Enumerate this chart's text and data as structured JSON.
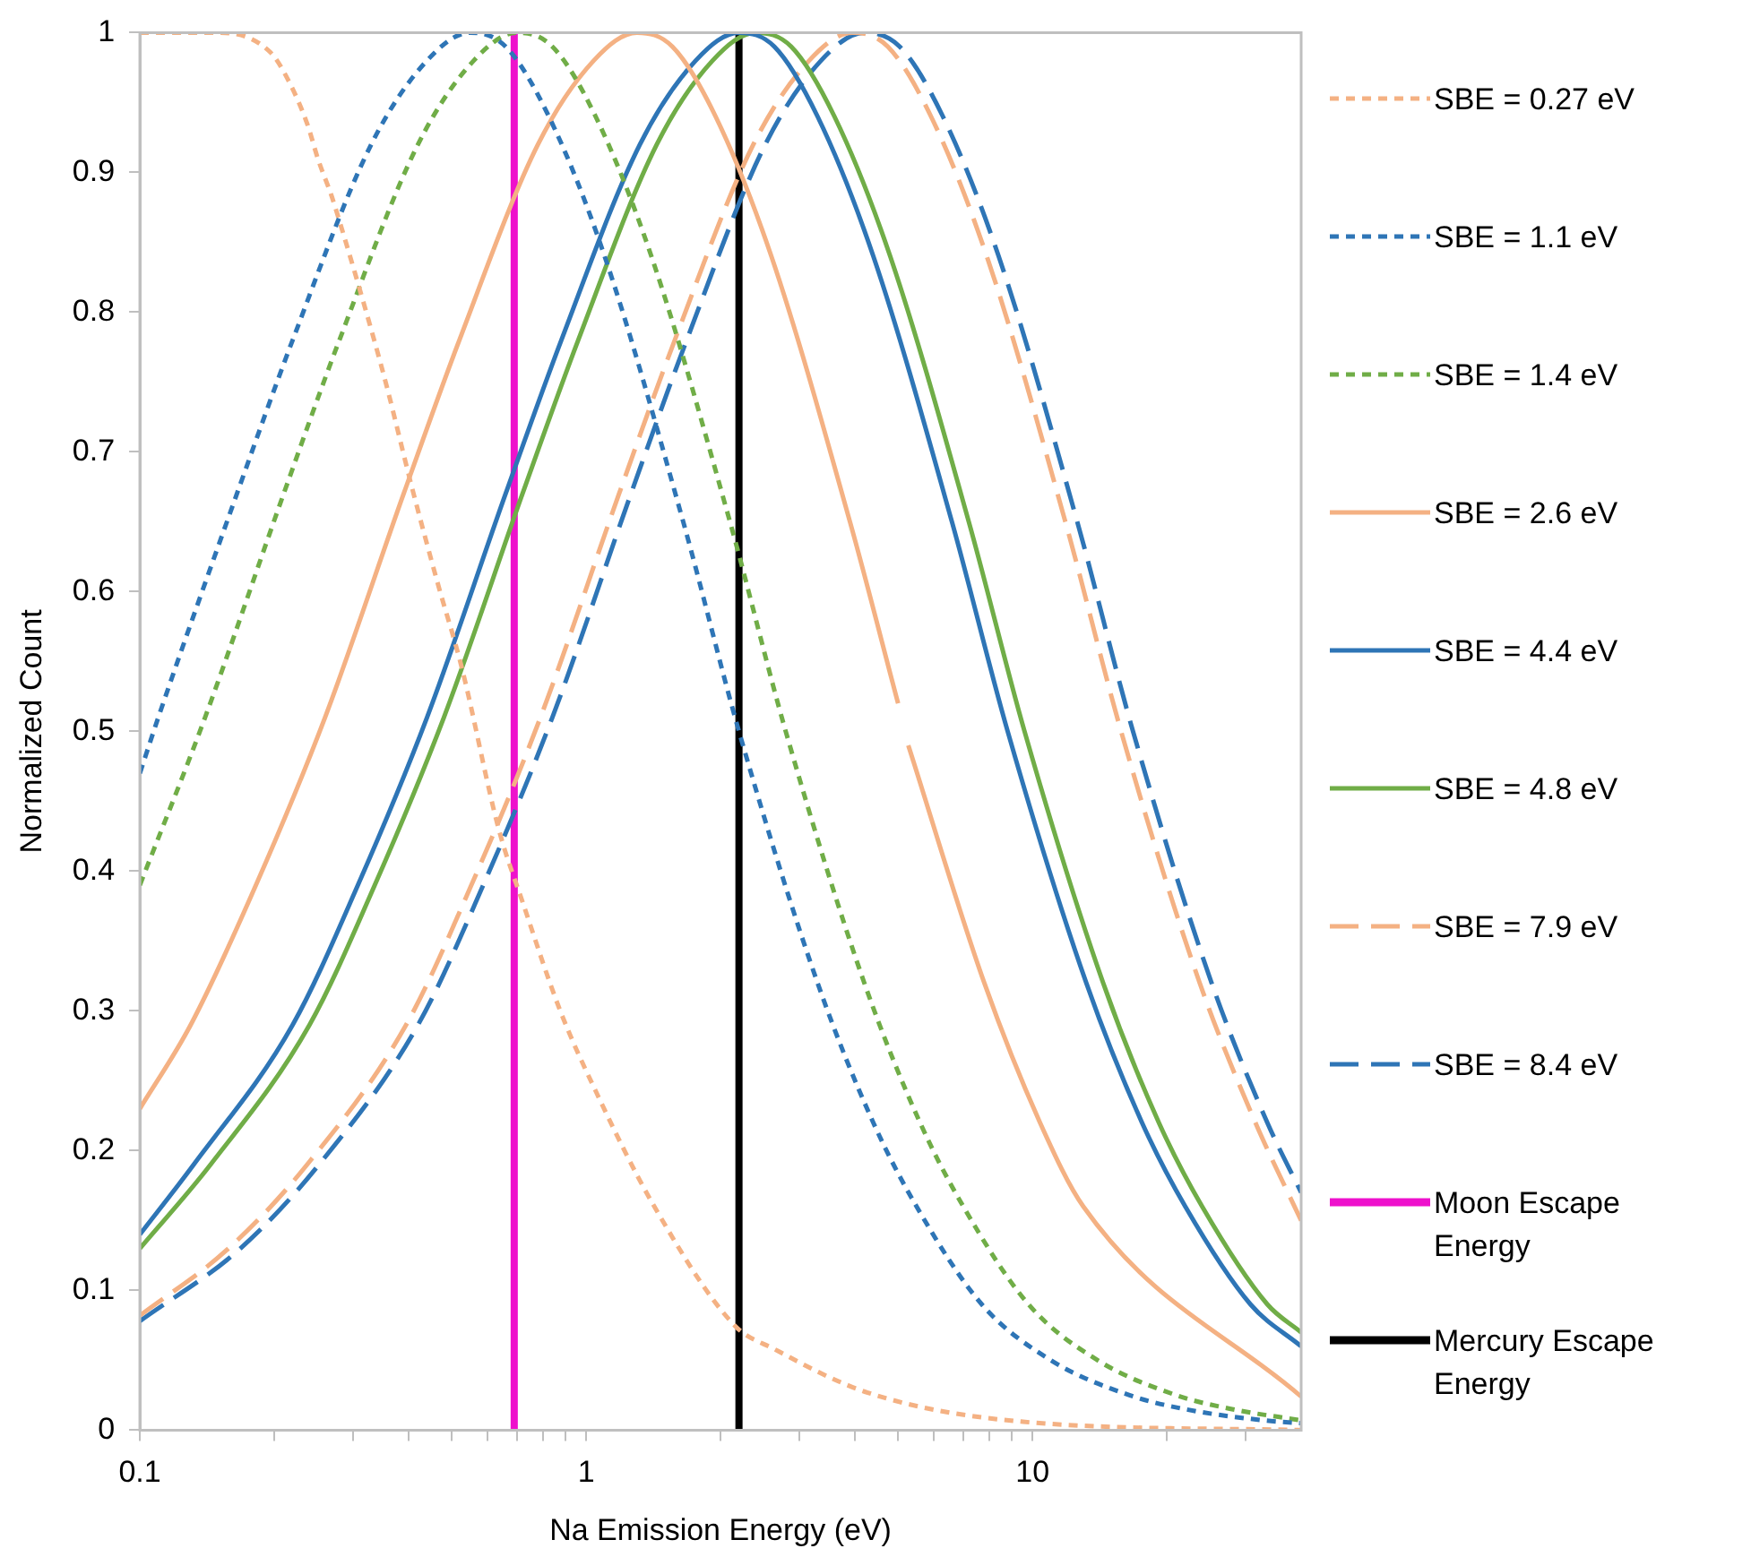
{
  "chart_data": {
    "type": "line",
    "xlabel": "Na Emission Energy (eV)",
    "ylabel": "Normalized Count",
    "log": "x",
    "grid": false,
    "legend": "right",
    "xlim": [
      0.1,
      40
    ],
    "xticks": [
      0.1,
      {
        "value": 0.2,
        "label": null
      },
      {
        "value": 0.3,
        "label": null
      },
      {
        "value": 0.4,
        "label": null
      },
      {
        "value": 0.5,
        "label": null
      },
      {
        "value": 0.6,
        "label": null
      },
      {
        "value": 0.7,
        "label": null
      },
      {
        "value": 0.8,
        "label": null
      },
      {
        "value": 0.9,
        "label": null
      },
      1,
      {
        "value": 2,
        "label": null
      },
      {
        "value": 3,
        "label": null
      },
      {
        "value": 4,
        "label": null
      },
      {
        "value": 5,
        "label": null
      },
      {
        "value": 6,
        "label": null
      },
      {
        "value": 7,
        "label": null
      },
      {
        "value": 8,
        "label": null
      },
      {
        "value": 9,
        "label": null
      },
      10,
      {
        "value": 20,
        "label": null
      },
      {
        "value": 30,
        "label": null
      }
    ],
    "ylim": [
      0,
      1
    ],
    "yticks": [
      0,
      0.1,
      0.2,
      0.3,
      0.4,
      0.5,
      0.6,
      0.7,
      0.8,
      0.9,
      1
    ],
    "series": [
      {
        "name": "SBE = 0.27 eV",
        "color": "#f4b183",
        "line_style": "dotted",
        "x": [
          0.1,
          0.15,
          0.196,
          0.215,
          0.237,
          0.251,
          0.269,
          0.282,
          0.304,
          0.335,
          0.358,
          0.406,
          0.464,
          0.526,
          0.637,
          0.722,
          0.875,
          1.06,
          1.41,
          2.15,
          2.64,
          4.26,
          9.53,
          40
        ],
        "values": [
          1,
          1,
          0.986,
          0.966,
          0.935,
          0.909,
          0.883,
          0.862,
          0.827,
          0.78,
          0.746,
          0.676,
          0.607,
          0.546,
          0.43,
          0.377,
          0.3,
          0.24,
          0.162,
          0.075,
          0.058,
          0.027,
          0.006,
          0
        ]
      },
      {
        "name": "SBE = 1.1 eV",
        "color": "#2e75b6",
        "line_style": "dotted",
        "x": [
          0.1,
          0.11,
          0.165,
          0.22,
          0.33,
          0.44,
          0.55,
          0.66,
          0.825,
          1.1,
          1.65,
          2.2,
          3.3,
          4.4,
          5.5,
          7.7,
          11,
          16.5,
          22,
          33,
          40
        ],
        "values": [
          0.47,
          0.51,
          0.67,
          0.78,
          0.92,
          0.98,
          1,
          0.99,
          0.94,
          0.84,
          0.65,
          0.5,
          0.32,
          0.22,
          0.16,
          0.09,
          0.05,
          0.025,
          0.015,
          0.007,
          0.005
        ]
      },
      {
        "name": "SBE = 1.4 eV",
        "color": "#70ad47",
        "line_style": "dotted",
        "x": [
          0.1,
          0.14,
          0.21,
          0.28,
          0.42,
          0.56,
          0.7,
          0.84,
          1.05,
          1.4,
          2.1,
          2.8,
          4.2,
          5.6,
          7,
          9.8,
          14,
          21,
          28,
          40
        ],
        "values": [
          0.39,
          0.51,
          0.67,
          0.78,
          0.92,
          0.98,
          1,
          0.99,
          0.94,
          0.84,
          0.65,
          0.5,
          0.32,
          0.22,
          0.16,
          0.09,
          0.05,
          0.025,
          0.015,
          0.007
        ]
      },
      {
        "name": "SBE = 2.6 eV",
        "color": "#f4b183",
        "line_style": "solid",
        "x": [
          0.1,
          0.13,
          0.182,
          0.26,
          0.39,
          0.52,
          0.78,
          1.04,
          1.3,
          1.56,
          1.95,
          2.6,
          3.9,
          5,
          5.1,
          5.27,
          7.8,
          10.4,
          13,
          40
        ],
        "values": [
          0.23,
          0.29,
          0.39,
          0.51,
          0.67,
          0.78,
          0.92,
          0.98,
          1,
          0.99,
          0.94,
          0.84,
          0.65,
          0.52,
          null,
          0.49,
          0.32,
          0.22,
          0.16,
          0.024
        ]
      },
      {
        "name": "SBE = 4.4 eV",
        "color": "#2e75b6",
        "line_style": "solid",
        "x": [
          0.1,
          0.132,
          0.22,
          0.308,
          0.44,
          0.66,
          0.88,
          1.32,
          1.76,
          2.2,
          2.64,
          3.3,
          4.4,
          6.6,
          8.8,
          13.2,
          17.6,
          22,
          30.8,
          40
        ],
        "values": [
          0.14,
          0.19,
          0.29,
          0.39,
          0.51,
          0.67,
          0.78,
          0.92,
          0.98,
          1,
          0.99,
          0.94,
          0.84,
          0.65,
          0.5,
          0.32,
          0.22,
          0.16,
          0.09,
          0.06
        ]
      },
      {
        "name": "SBE = 4.8 eV",
        "color": "#70ad47",
        "line_style": "solid",
        "x": [
          0.1,
          0.144,
          0.24,
          0.336,
          0.48,
          0.72,
          0.96,
          1.44,
          1.92,
          2.4,
          2.88,
          3.6,
          4.8,
          7.2,
          9.6,
          14.4,
          19.2,
          24,
          33.6,
          40
        ],
        "values": [
          0.13,
          0.19,
          0.29,
          0.39,
          0.51,
          0.67,
          0.78,
          0.92,
          0.98,
          1,
          0.99,
          0.94,
          0.84,
          0.65,
          0.5,
          0.32,
          0.22,
          0.16,
          0.09,
          0.07
        ]
      },
      {
        "name": "SBE = 7.9 eV",
        "color": "#f4b183",
        "line_style": "dashed",
        "x": [
          0.1,
          0.158,
          0.237,
          0.395,
          0.553,
          0.79,
          1.185,
          1.58,
          2.37,
          3.16,
          3.95,
          4.74,
          5.925,
          7.9,
          11.85,
          15.8,
          23.7,
          31.6,
          40
        ],
        "values": [
          0.082,
          0.13,
          0.19,
          0.29,
          0.39,
          0.51,
          0.67,
          0.78,
          0.92,
          0.98,
          1,
          0.99,
          0.94,
          0.84,
          0.65,
          0.5,
          0.32,
          0.22,
          0.15
        ]
      },
      {
        "name": "SBE = 8.4 eV",
        "color": "#2e75b6",
        "line_style": "dashed",
        "x": [
          0.1,
          0.168,
          0.252,
          0.42,
          0.588,
          0.84,
          1.26,
          1.68,
          2.52,
          3.36,
          4.2,
          5.04,
          6.3,
          8.4,
          12.6,
          16.8,
          25.2,
          33.6,
          40
        ],
        "values": [
          0.078,
          0.13,
          0.19,
          0.29,
          0.39,
          0.51,
          0.67,
          0.78,
          0.92,
          0.98,
          1,
          0.99,
          0.94,
          0.84,
          0.65,
          0.5,
          0.32,
          0.22,
          0.17
        ]
      },
      {
        "name": "Moon Escape Energy",
        "color": "#ee11cc",
        "line_style": "solid",
        "x": [
          0.69,
          0.69
        ],
        "values": [
          0,
          1
        ]
      },
      {
        "name": "Mercury Escape Energy",
        "color": "#000000",
        "line_style": "solid",
        "x": [
          2.2,
          2.2
        ],
        "values": [
          0,
          1
        ]
      }
    ]
  }
}
